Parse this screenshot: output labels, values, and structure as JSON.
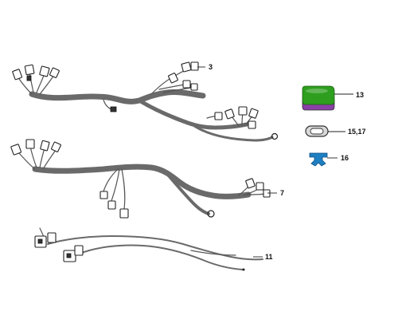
{
  "diagram": {
    "parts": [
      {
        "id": "harness-3",
        "callout": "3"
      },
      {
        "id": "harness-7",
        "callout": "7"
      },
      {
        "id": "harness-11",
        "callout": "11"
      },
      {
        "id": "module-13",
        "callout": "13",
        "colors": {
          "top": "#2e9e1e",
          "base": "#8a3fa6"
        }
      },
      {
        "id": "grommet-15-17",
        "callout": "15,17"
      },
      {
        "id": "clip-16",
        "callout": "16",
        "color": "#1e7fc2"
      }
    ]
  }
}
